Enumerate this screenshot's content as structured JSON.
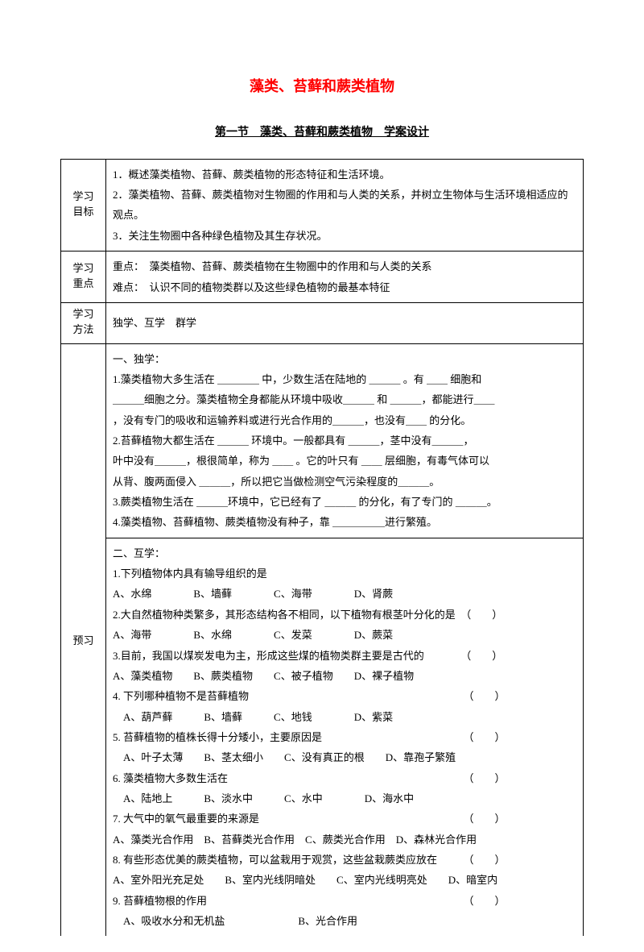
{
  "title": "藻类、苔藓和蕨类植物",
  "subtitle": "第一节　藻类、苔藓和蕨类植物　学案设计",
  "rows": {
    "goal": {
      "label": "学习目标",
      "content": "1．概述藻类植物、苔藓、蕨类植物的形态特征和生活环境。\n2．藻类植物、苔藓、蕨类植物对生物圈的作用和与人类的关系，并树立生物体与生活环境相适应的观点。\n3．关注生物圈中各种绿色植物及其生存状况。"
    },
    "focus": {
      "label": "学习重点",
      "l1": "重点：　藻类植物、苔藓、蕨类植物在生物圈中的作用和与人类的关系",
      "l2": "难点：　认识不同的植物类群以及这些绿色植物的最基本特征"
    },
    "method": {
      "label": "学习方法",
      "content": "独学、互学　群学"
    },
    "preview": {
      "label": "预习",
      "part1": {
        "h": "一、独学：",
        "l1a": "1.藻类植物大多生活在 ＿＿＿＿ 中，少数生活在陆地的 ＿＿＿ 。有 ＿＿ 细胞和",
        "l1b": "＿＿＿细胞之分。藻类植物全身都能从环境中吸收＿＿＿ 和 ＿＿＿，都能进行＿＿",
        "l1c": "，没有专门的吸收和运输养料或进行光合作用的＿＿＿，也没有＿＿ 的分化。",
        "l2a": "2.苔藓植物大都生活在 ＿＿＿ 环境中。一般都具有 ＿＿＿，茎中没有＿＿＿，",
        "l2b": "叶中没有＿＿＿，根很简单，称为 ＿＿ 。它的叶只有 ＿＿ 层细胞，有毒气体可以",
        "l2c": "从背、腹两面侵入 ＿＿＿，所以把它当做检测空气污染程度的＿＿＿。",
        "l3": "3.蕨类植物生活在 ＿＿＿环境中，它已经有了 ＿＿＿ 的分化，有了专门的 ＿＿＿。",
        "l4": "4.藻类植物、苔藓植物、蕨类植物没有种子，靠 ＿＿＿＿＿进行繁殖。"
      },
      "part2": {
        "h": "二、互学：",
        "q1": "1.下列植物体内具有输导组织的是",
        "q1o": "A、水绵　　　　B、墙藓　　　　C、海带　　　　D、肾蕨",
        "q2": "2.大自然植物种类繁多，其形态结构各不相同，以下植物有根茎叶分化的是　（　　）",
        "q2o": "A、海带　　　　B、水绵　　　　C、发菜　　　　D、蕨菜",
        "q3a": "3.目前，我国以煤炭发电为主，形成这些煤的植物类群主要是古代的　　　　（　　）",
        "q3o": "A、藻类植物　　B、蕨类植物　　C、被子植物　　D、裸子植物",
        "q4": "4. 下列哪种植物不是苔藓植物　　　　　　　　　　　　　　　　　　　　　（　　）",
        "q4o": "　A、葫芦藓　　　B、墙藓　　　C、地钱　　　　D、紫菜",
        "q5": "5. 苔藓植物的植株长得十分矮小，主要原因是　　　　　　　　　　　　　　（　　）",
        "q5o": "　A、叶子太薄　　B、茎太细小　　C、没有真正的根　　D、靠孢子繁殖",
        "q6": "6. 藻类植物大多数生活在　　　　　　　　　　　　　　　　　　　　　　　（　　）",
        "q6o": "　A、陆地上　　　B、淡水中　　　C、水中　　　　D、海水中",
        "q7": "7. 大气中的氧气最重要的来源是　　　　　　　　　　　　　　　　　　　　（　　）",
        "q7o": "A、藻类光合作用　B、苔藓类光合作用　C、蕨类光合作用　D、森林光合作用",
        "q8": "8. 有些形态优美的蕨类植物，可以盆栽用于观赏，这些盆栽蕨类应放在　　　（　　）",
        "q8o": "A、室外阳光充足处　　B、室内光线阴暗处　　C、室内光线明亮处　　D、暗室内",
        "q9": "9. 苔藓植物根的作用　　　　　　　　　　　　　　　　　　　　　　　　　（　　）",
        "q9o": "　A、吸收水分和无机盐　　　　　　　B、光合作用"
      }
    }
  }
}
